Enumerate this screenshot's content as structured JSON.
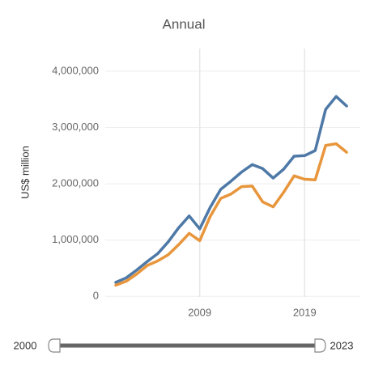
{
  "chart_data": {
    "type": "line",
    "title": "Annual",
    "y_label": "US$ million",
    "x": [
      2001,
      2002,
      2003,
      2004,
      2005,
      2006,
      2007,
      2008,
      2009,
      2010,
      2011,
      2012,
      2013,
      2014,
      2015,
      2016,
      2017,
      2018,
      2019,
      2020,
      2021,
      2022,
      2023
    ],
    "series": [
      {
        "color": "#4e79a7",
        "values": [
          250000,
          330000,
          470000,
          620000,
          760000,
          970000,
          1220000,
          1430000,
          1200000,
          1580000,
          1900000,
          2050000,
          2210000,
          2340000,
          2270000,
          2100000,
          2260000,
          2490000,
          2500000,
          2590000,
          3320000,
          3550000,
          3380000
        ]
      },
      {
        "color": "#e8963c",
        "values": [
          200000,
          270000,
          400000,
          550000,
          630000,
          740000,
          920000,
          1120000,
          990000,
          1420000,
          1740000,
          1820000,
          1950000,
          1960000,
          1680000,
          1590000,
          1850000,
          2140000,
          2080000,
          2070000,
          2680000,
          2710000,
          2560000
        ]
      }
    ],
    "xlim": [
      2000,
      2024.3
    ],
    "xticks": [
      2009,
      2019
    ],
    "ylim": [
      -10000,
      4400000
    ],
    "yticks": [
      0,
      {
        "value": 1000000,
        "label": "1,000,000"
      },
      {
        "value": 2000000,
        "label": "2,000,000"
      },
      {
        "value": 3000000,
        "label": "3,000,000"
      },
      {
        "value": 4000000,
        "label": "4,000,000"
      }
    ],
    "grid": true
  },
  "slider": {
    "min": 2000,
    "max": 2023
  }
}
